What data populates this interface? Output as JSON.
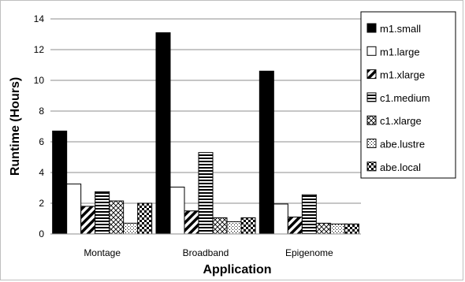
{
  "chart_data": {
    "type": "bar",
    "xlabel": "Application",
    "ylabel": "Runtime (Hours)",
    "ylim": [
      0,
      14
    ],
    "yticks": [
      0,
      2,
      4,
      6,
      8,
      10,
      12,
      14
    ],
    "grid": true,
    "legend_position": "top-right",
    "categories": [
      "Montage",
      "Broadband",
      "Epigenome"
    ],
    "series": [
      {
        "name": "m1.small",
        "pattern": "solid-black",
        "values": [
          6.7,
          13.1,
          10.6
        ]
      },
      {
        "name": "m1.large",
        "pattern": "white",
        "values": [
          3.25,
          3.05,
          1.95
        ]
      },
      {
        "name": "m1.xlarge",
        "pattern": "diagonal-thick",
        "values": [
          1.8,
          1.5,
          1.1
        ]
      },
      {
        "name": "c1.medium",
        "pattern": "horizontal-lines",
        "values": [
          2.75,
          5.3,
          2.55
        ]
      },
      {
        "name": "c1.xlarge",
        "pattern": "crosshatch",
        "values": [
          2.15,
          1.05,
          0.7
        ]
      },
      {
        "name": "abe.lustre",
        "pattern": "dots",
        "values": [
          0.7,
          0.8,
          0.65
        ]
      },
      {
        "name": "abe.local",
        "pattern": "checker",
        "values": [
          2.0,
          1.05,
          0.65
        ]
      }
    ]
  }
}
